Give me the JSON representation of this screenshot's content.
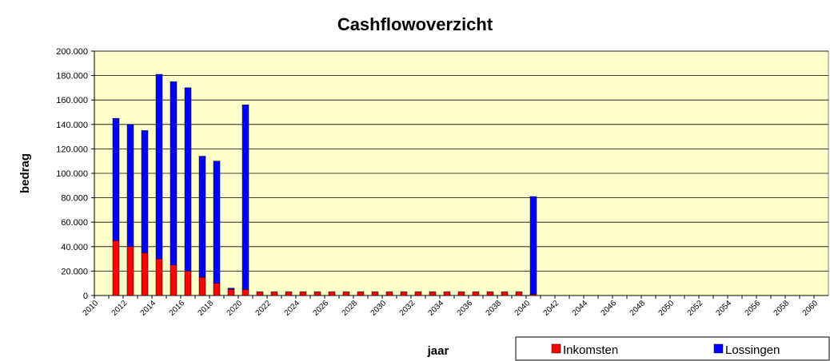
{
  "chart_data": {
    "type": "bar",
    "stacked": true,
    "title": "Cashflowoverzicht",
    "x_label": "jaar",
    "y_label": "bedrag",
    "categories": [
      "2010",
      null,
      "2012",
      null,
      "2014",
      null,
      "2016",
      null,
      "2018",
      null,
      "2020",
      null,
      "2022",
      null,
      "2024",
      null,
      "2026",
      null,
      "2028",
      null,
      "2030",
      null,
      "2032",
      null,
      "2034",
      null,
      "2036",
      null,
      "2038",
      null,
      "2040",
      null,
      "2042",
      null,
      "2044",
      null,
      "2046",
      null,
      "2048",
      null,
      "2050",
      null,
      "2052",
      null,
      "2054",
      null,
      "2056",
      null,
      "2058",
      null,
      "2060"
    ],
    "series": [
      {
        "name": "Inkomsten",
        "color": "#ff0000",
        "values": [
          0,
          45000,
          40000,
          35000,
          30000,
          25000,
          20000,
          15000,
          10000,
          5000,
          5000,
          3000,
          3000,
          3000,
          3000,
          3000,
          3000,
          3000,
          3000,
          3000,
          3000,
          3000,
          3000,
          3000,
          3000,
          3000,
          3000,
          3000,
          3000,
          3000,
          1000,
          0,
          0,
          0,
          0,
          0,
          0,
          0,
          0,
          0,
          0,
          0,
          0,
          0,
          0,
          0,
          0,
          0,
          0,
          0,
          0
        ]
      },
      {
        "name": "Lossingen",
        "color": "#0000ff",
        "values": [
          0,
          100000,
          100000,
          100000,
          151000,
          150000,
          150000,
          99000,
          100000,
          1000,
          151000,
          0,
          0,
          0,
          0,
          0,
          0,
          0,
          0,
          0,
          0,
          0,
          0,
          0,
          0,
          0,
          0,
          0,
          0,
          0,
          80000,
          0,
          0,
          0,
          0,
          0,
          0,
          0,
          0,
          0,
          0,
          0,
          0,
          0,
          0,
          0,
          0,
          0,
          0,
          0,
          0
        ]
      }
    ],
    "ylim": [
      0,
      200000
    ],
    "yticks": [
      0,
      {
        "value": 20000,
        "label": "20.000"
      },
      {
        "value": 40000,
        "label": "40.000"
      },
      {
        "value": 60000,
        "label": "60.000"
      },
      {
        "value": 80000,
        "label": "80.000"
      },
      {
        "value": 100000,
        "label": "100.000"
      },
      {
        "value": 120000,
        "label": "120.000"
      },
      {
        "value": 140000,
        "label": "140.000"
      },
      {
        "value": 160000,
        "label": "160.000"
      },
      {
        "value": 180000,
        "label": "180.000"
      },
      {
        "value": 200000,
        "label": "200.000"
      }
    ],
    "grid": true,
    "background": "#ffffcc",
    "legend": "bottom-right"
  }
}
